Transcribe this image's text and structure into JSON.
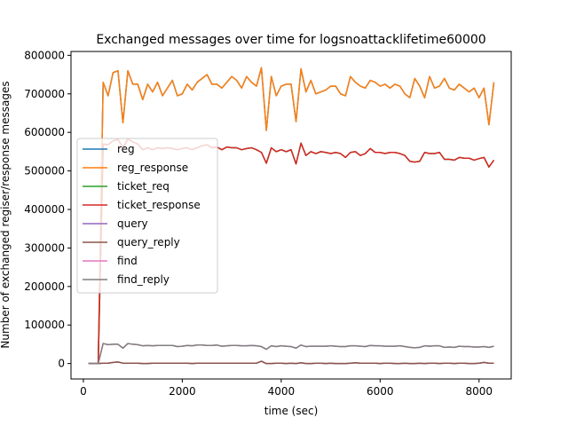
{
  "chart_data": {
    "type": "line",
    "title": "Exchanged messages over time for  logsnoattacklifetime60000",
    "xlabel": "time (sec)",
    "ylabel": "Number of exchanged regiser/response messages",
    "xlim": [
      -250,
      8650
    ],
    "ylim": [
      -40000,
      810000
    ],
    "xticks": [
      0,
      2000,
      4000,
      6000,
      8000
    ],
    "yticks": [
      0,
      100000,
      200000,
      300000,
      400000,
      500000,
      600000,
      700000,
      800000
    ],
    "legend_position": "center-left",
    "grid": false,
    "x": [
      100,
      200,
      300,
      400,
      500,
      600,
      700,
      800,
      900,
      1000,
      1100,
      1200,
      1300,
      1400,
      1500,
      1600,
      1700,
      1800,
      1900,
      2000,
      2100,
      2200,
      2300,
      2400,
      2500,
      2600,
      2700,
      2800,
      2900,
      3000,
      3100,
      3200,
      3300,
      3400,
      3500,
      3600,
      3700,
      3800,
      3900,
      4000,
      4100,
      4200,
      4300,
      4400,
      4500,
      4600,
      4700,
      4800,
      4900,
      5000,
      5100,
      5200,
      5300,
      5400,
      5500,
      5600,
      5700,
      5800,
      5900,
      6000,
      6100,
      6200,
      6300,
      6400,
      6500,
      6600,
      6700,
      6800,
      6900,
      7000,
      7100,
      7200,
      7300,
      7400,
      7500,
      7600,
      7700,
      7800,
      7900,
      8000,
      8100,
      8200,
      8300
    ],
    "series": [
      {
        "name": "reg",
        "color": "#1f77b4",
        "values": [
          0,
          0,
          0,
          730000,
          695000,
          755000,
          760000,
          625000,
          760000,
          725000,
          725000,
          685000,
          725000,
          705000,
          730000,
          695000,
          715000,
          735000,
          695000,
          700000,
          725000,
          710000,
          730000,
          740000,
          750000,
          725000,
          725000,
          715000,
          730000,
          745000,
          735000,
          715000,
          745000,
          730000,
          720000,
          768000,
          605000,
          745000,
          695000,
          720000,
          725000,
          725000,
          628000,
          765000,
          705000,
          735000,
          700000,
          705000,
          710000,
          720000,
          720000,
          700000,
          695000,
          745000,
          730000,
          720000,
          715000,
          735000,
          730000,
          720000,
          725000,
          715000,
          725000,
          720000,
          700000,
          690000,
          740000,
          720000,
          690000,
          745000,
          715000,
          720000,
          740000,
          715000,
          710000,
          725000,
          715000,
          705000,
          715000,
          690000,
          715000,
          620000,
          730000
        ]
      },
      {
        "name": "reg_response",
        "color": "#ff7f0e",
        "values": [
          0,
          0,
          0,
          730000,
          695000,
          755000,
          760000,
          625000,
          760000,
          725000,
          725000,
          685000,
          725000,
          705000,
          730000,
          695000,
          715000,
          735000,
          695000,
          700000,
          725000,
          710000,
          730000,
          740000,
          750000,
          725000,
          725000,
          715000,
          730000,
          745000,
          735000,
          715000,
          745000,
          730000,
          720000,
          768000,
          605000,
          745000,
          695000,
          720000,
          725000,
          725000,
          628000,
          765000,
          705000,
          735000,
          700000,
          705000,
          710000,
          720000,
          720000,
          700000,
          695000,
          745000,
          730000,
          720000,
          715000,
          735000,
          730000,
          720000,
          725000,
          715000,
          725000,
          720000,
          700000,
          690000,
          740000,
          720000,
          690000,
          745000,
          715000,
          720000,
          740000,
          715000,
          710000,
          725000,
          715000,
          705000,
          715000,
          690000,
          715000,
          620000,
          730000
        ]
      },
      {
        "name": "ticket_req",
        "color": "#2ca02c",
        "values": [
          0,
          0,
          0,
          570000,
          568000,
          578000,
          582000,
          560000,
          583000,
          575000,
          570000,
          555000,
          560000,
          555000,
          560000,
          558000,
          560000,
          558000,
          555000,
          558000,
          560000,
          555000,
          560000,
          565000,
          568000,
          560000,
          562000,
          555000,
          562000,
          560000,
          560000,
          555000,
          558000,
          560000,
          555000,
          548000,
          520000,
          560000,
          550000,
          555000,
          550000,
          555000,
          518000,
          572000,
          540000,
          550000,
          545000,
          550000,
          548000,
          545000,
          548000,
          545000,
          535000,
          548000,
          550000,
          540000,
          545000,
          558000,
          548000,
          548000,
          545000,
          548000,
          548000,
          545000,
          540000,
          525000,
          523000,
          525000,
          548000,
          545000,
          545000,
          548000,
          530000,
          530000,
          528000,
          535000,
          533000,
          533000,
          528000,
          532000,
          535000,
          510000,
          528000
        ]
      },
      {
        "name": "ticket_response",
        "color": "#d62728",
        "values": [
          0,
          0,
          0,
          570000,
          568000,
          578000,
          582000,
          560000,
          583000,
          575000,
          570000,
          555000,
          560000,
          555000,
          560000,
          558000,
          560000,
          558000,
          555000,
          558000,
          560000,
          555000,
          560000,
          565000,
          568000,
          560000,
          562000,
          555000,
          562000,
          560000,
          560000,
          555000,
          558000,
          560000,
          555000,
          548000,
          520000,
          560000,
          550000,
          555000,
          550000,
          555000,
          518000,
          572000,
          540000,
          550000,
          545000,
          550000,
          548000,
          545000,
          548000,
          545000,
          535000,
          548000,
          550000,
          540000,
          545000,
          558000,
          548000,
          548000,
          545000,
          548000,
          548000,
          545000,
          540000,
          525000,
          523000,
          525000,
          548000,
          545000,
          545000,
          548000,
          530000,
          530000,
          528000,
          535000,
          533000,
          533000,
          528000,
          532000,
          535000,
          510000,
          528000
        ]
      },
      {
        "name": "query",
        "color": "#9467bd",
        "values": [
          0,
          0,
          0,
          1000,
          1000,
          3000,
          4000,
          1000,
          1000,
          1000,
          1000,
          0,
          0,
          1000,
          1000,
          1000,
          1000,
          1000,
          1000,
          1000,
          1000,
          0,
          1000,
          1000,
          1000,
          1000,
          1000,
          1000,
          1000,
          1000,
          1000,
          1000,
          1000,
          1000,
          1000,
          6000,
          0,
          0,
          1000,
          1000,
          0,
          1000,
          0,
          2000,
          0,
          0,
          1000,
          1000,
          0,
          1000,
          0,
          0,
          0,
          1000,
          2000,
          1000,
          1000,
          1000,
          1000,
          0,
          1000,
          1000,
          0,
          0,
          1000,
          0,
          0,
          1000,
          0,
          1000,
          1000,
          0,
          1000,
          1000,
          0,
          1000,
          1000,
          0,
          0,
          1000,
          3000,
          1000,
          1000
        ]
      },
      {
        "name": "query_reply",
        "color": "#8c564b",
        "values": [
          0,
          0,
          0,
          1000,
          1000,
          3000,
          4000,
          1000,
          1000,
          1000,
          1000,
          0,
          0,
          1000,
          1000,
          1000,
          1000,
          1000,
          1000,
          1000,
          1000,
          0,
          1000,
          1000,
          1000,
          1000,
          1000,
          1000,
          1000,
          1000,
          1000,
          1000,
          1000,
          1000,
          1000,
          6000,
          0,
          0,
          1000,
          1000,
          0,
          1000,
          0,
          2000,
          0,
          0,
          1000,
          1000,
          0,
          1000,
          0,
          0,
          0,
          1000,
          2000,
          1000,
          1000,
          1000,
          1000,
          0,
          1000,
          1000,
          0,
          0,
          1000,
          0,
          0,
          1000,
          0,
          1000,
          1000,
          0,
          1000,
          1000,
          0,
          1000,
          1000,
          0,
          0,
          1000,
          3000,
          1000,
          1000
        ]
      },
      {
        "name": "find",
        "color": "#e377c2",
        "values": [
          0,
          0,
          0,
          52000,
          49000,
          50000,
          50000,
          40000,
          52000,
          50000,
          49000,
          46000,
          47000,
          46000,
          47000,
          47000,
          47000,
          47000,
          44000,
          45000,
          47000,
          46000,
          48000,
          48000,
          47000,
          47000,
          48000,
          45000,
          46000,
          47000,
          47000,
          46000,
          46000,
          47000,
          46000,
          44000,
          37000,
          46000,
          44000,
          46000,
          45000,
          44000,
          40000,
          48000,
          44000,
          45000,
          45000,
          45000,
          45000,
          46000,
          45000,
          44000,
          44000,
          46000,
          46000,
          45000,
          44000,
          47000,
          46000,
          46000,
          45000,
          45000,
          45000,
          46000,
          44000,
          42000,
          41000,
          42000,
          46000,
          45000,
          46000,
          46000,
          42000,
          43000,
          42000,
          45000,
          44000,
          44000,
          43000,
          43000,
          44000,
          42000,
          45000
        ]
      },
      {
        "name": "find_reply",
        "color": "#7f7f7f",
        "values": [
          0,
          0,
          0,
          52000,
          49000,
          50000,
          50000,
          40000,
          52000,
          50000,
          49000,
          46000,
          47000,
          46000,
          47000,
          47000,
          47000,
          47000,
          44000,
          45000,
          47000,
          46000,
          48000,
          48000,
          47000,
          47000,
          48000,
          45000,
          46000,
          47000,
          47000,
          46000,
          46000,
          47000,
          46000,
          44000,
          37000,
          46000,
          44000,
          46000,
          45000,
          44000,
          40000,
          48000,
          44000,
          45000,
          45000,
          45000,
          45000,
          46000,
          45000,
          44000,
          44000,
          46000,
          46000,
          45000,
          44000,
          47000,
          46000,
          46000,
          45000,
          45000,
          45000,
          46000,
          44000,
          42000,
          41000,
          42000,
          46000,
          45000,
          46000,
          46000,
          42000,
          43000,
          42000,
          45000,
          44000,
          44000,
          43000,
          43000,
          44000,
          42000,
          45000
        ]
      }
    ]
  }
}
